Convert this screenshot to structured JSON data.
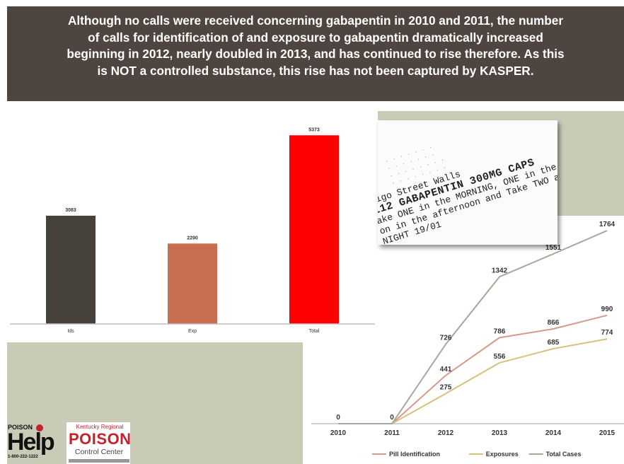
{
  "banner": {
    "text": "Although no calls were received concerning gabapentin in 2010 and 2011, the number\nof calls for identification of and exposure to gabapentin dramatically increased\nbeginning in 2012, nearly doubled in 2013, and has continued to rise therefore.  As this\nis NOT a controlled substance, this rise has not been captured by KASPER."
  },
  "chart_data": [
    {
      "type": "bar",
      "categories": [
        "Ids",
        "Exp",
        "Total"
      ],
      "values": [
        3083,
        2290,
        5373
      ],
      "value_labels": [
        "3083",
        "2290",
        "5373"
      ],
      "colors": [
        "#46413a",
        "#c86e53",
        "#ff0000"
      ],
      "ylim": [
        0,
        5600
      ],
      "grid": false
    },
    {
      "type": "line",
      "x": [
        "2010",
        "2011",
        "2012",
        "2013",
        "2014",
        "2015"
      ],
      "series": [
        {
          "name": "Pill Identification",
          "color": "#d49a8c",
          "values": [
            0,
            0,
            441,
            786,
            866,
            990
          ],
          "labels": [
            "",
            "",
            "441",
            "786",
            "866",
            "990"
          ]
        },
        {
          "name": "Exposures",
          "color": "#d7c17d",
          "values": [
            0,
            0,
            275,
            556,
            685,
            774
          ],
          "labels": [
            "",
            "",
            "275",
            "556",
            "685",
            "774"
          ]
        },
        {
          "name": "Total Cases",
          "color": "#a8a89a",
          "values": [
            0,
            0,
            726,
            1342,
            1551,
            1764
          ],
          "labels": [
            "0",
            "0",
            "726",
            "1342",
            "1551",
            "1764"
          ]
        }
      ],
      "ylim": [
        0,
        1900
      ],
      "grid": false,
      "legend": "bottom"
    }
  ],
  "photo": {
    "lines_small": [
      "· · · ·  · · ·",
      "· ·  · · ·   · ·",
      "   · · ·  · ·  · · ·",
      "  ·  · · ·  · · · ·"
    ],
    "lines": [
      "ligo Street  Walls",
      "112  GABAPENTIN 300MG CAPS",
      "ake ONE in the MORNING, ONE in the",
      "on in the afternoon and Take TWO at",
      "NIGHT              19/01"
    ]
  },
  "logos": {
    "help_top": "POISON",
    "help_word": "Help",
    "help_phone": "1-800-222-1222",
    "kentucky_small": "Kentucky Regional",
    "poison": "POISON",
    "control_center": "Control Center"
  },
  "colors": {
    "banner_bg": "#4f4540",
    "sage": "#c9cbb6",
    "axis": "#bfbfbf"
  }
}
